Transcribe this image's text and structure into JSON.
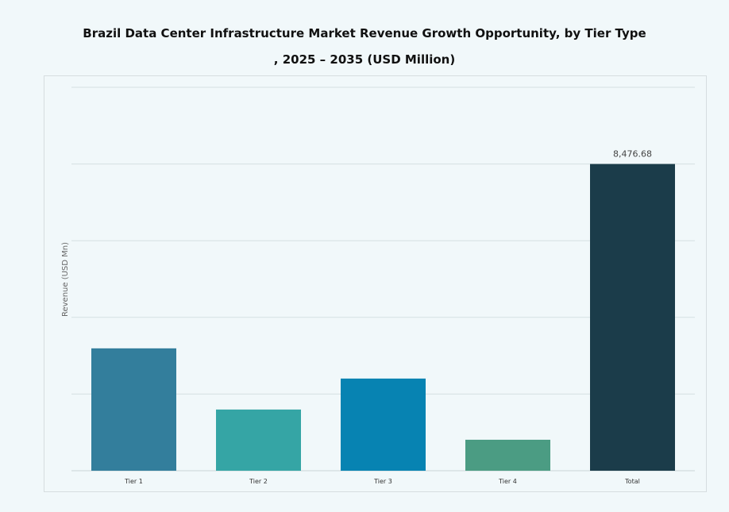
{
  "title_line1": "Brazil Data Center Infrastructure Market Revenue Growth Opportunity, by Tier Type",
  "title_line2": ", 2025 – 2035 (USD Million)",
  "chart_data": {
    "type": "bar",
    "title": "Brazil Data Center Infrastructure Market Revenue Growth Opportunity, by Tier Type , 2025 – 2035 (USD Million)",
    "xlabel": "",
    "ylabel": "Revenue (USD Mn)",
    "categories": [
      "Tier 1",
      "Tier 2",
      "Tier 3",
      "Tier 4",
      "Total"
    ],
    "values": [
      3382,
      1691,
      2547,
      856,
      8476.68
    ],
    "data_labels": [
      "",
      "",
      "",
      "",
      "8,476.68"
    ],
    "colors": [
      "#337e9c",
      "#35a5a5",
      "#0783b2",
      "#4b9c83",
      "#1b3c4a"
    ],
    "ylim": [
      0,
      10596
    ],
    "y_tick_labels_shown": false,
    "grid": true,
    "legend": "none"
  }
}
